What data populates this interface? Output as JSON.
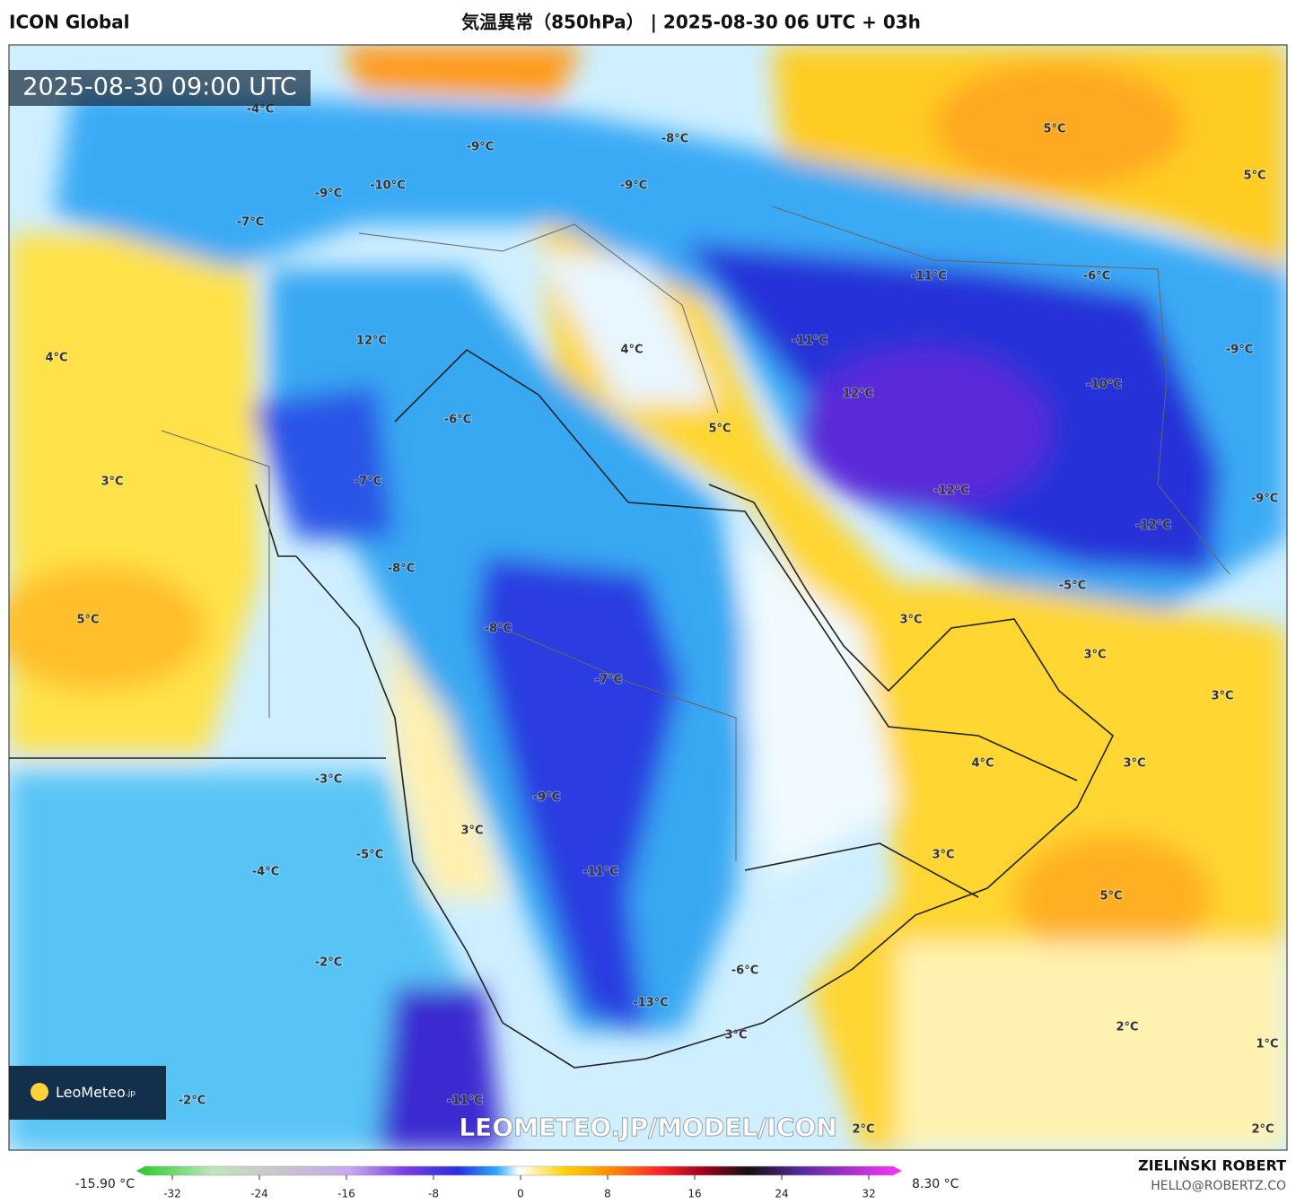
{
  "header": {
    "model": "ICON Global",
    "title": "気温異常（850hPa） | 2025-08-30 06 UTC + 03h"
  },
  "timestamp": "2025-08-30 09:00 UTC",
  "map_labels": [
    "-4°C",
    "-9°C",
    "-8°C",
    "5°C",
    "5°C",
    "-9°C",
    "-10°C",
    "-9°C",
    "-7°C",
    "-11°C",
    "-6°C",
    "12°C",
    "4°C",
    "4°C",
    "-11°C",
    "-9°C",
    "12°C",
    "-10°C",
    "-6°C",
    "5°C",
    "3°C",
    "-7°C",
    "-12°C",
    "-9°C",
    "-12°C",
    "-8°C",
    "-5°C",
    "5°C",
    "-8°C",
    "3°C",
    "3°C",
    "-7°C",
    "3°C",
    "-3°C",
    "4°C",
    "3°C",
    "-9°C",
    "3°C",
    "-5°C",
    "-4°C",
    "-11°C",
    "3°C",
    "5°C",
    "-2°C",
    "-6°C",
    "-13°C",
    "2°C",
    "3°C",
    "1°C",
    "-2°C",
    "-11°C",
    "2°C",
    "2°C"
  ],
  "logo": {
    "brand": "LeoMeteo",
    "suffix": ".jp"
  },
  "url": "LEOMETEO.JP/MODEL/ICON",
  "colorbar": {
    "min_label": "-15.90 °C",
    "max_label": "8.30 °C",
    "ticks": [
      -32,
      -24,
      -16,
      -8,
      0,
      8,
      16,
      24,
      32
    ]
  },
  "credit": {
    "name": "ZIELIŃSKI ROBERT",
    "email": "HELLO@ROBERTZ.CO"
  }
}
